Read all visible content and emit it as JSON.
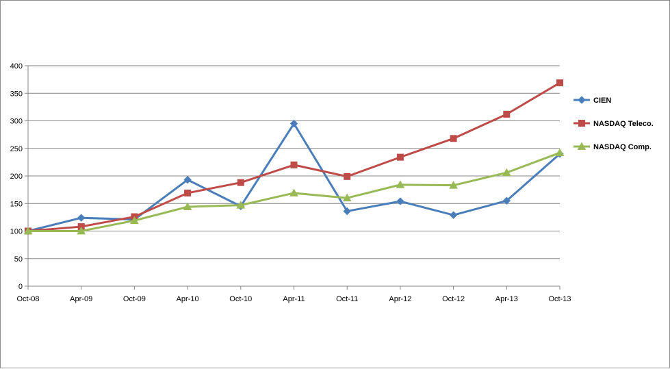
{
  "chart_data": {
    "type": "line",
    "title": "",
    "xlabel": "",
    "ylabel": "",
    "categories": [
      "Oct-08",
      "Apr-09",
      "Oct-09",
      "Apr-10",
      "Oct-10",
      "Apr-11",
      "Oct-11",
      "Apr-12",
      "Oct-12",
      "Apr-13",
      "Oct-13"
    ],
    "ylim": [
      0,
      400
    ],
    "yticks": [
      0,
      50,
      100,
      150,
      200,
      250,
      300,
      350,
      400
    ],
    "grid": true,
    "legend": "right",
    "series": [
      {
        "name": "CIEN",
        "color": "#4a7ebb",
        "marker": "diamond",
        "values": [
          100,
          124,
          121,
          193,
          145,
          295,
          136,
          154,
          129,
          155,
          240
        ]
      },
      {
        "name": "NASDAQ Teleco.",
        "color": "#be4b48",
        "marker": "square",
        "values": [
          100,
          108,
          126,
          169,
          188,
          220,
          199,
          234,
          268,
          312,
          369
        ]
      },
      {
        "name": "NASDAQ Comp.",
        "color": "#98b954",
        "marker": "triangle",
        "values": [
          100,
          100,
          119,
          144,
          147,
          169,
          160,
          184,
          183,
          206,
          242
        ]
      }
    ]
  }
}
